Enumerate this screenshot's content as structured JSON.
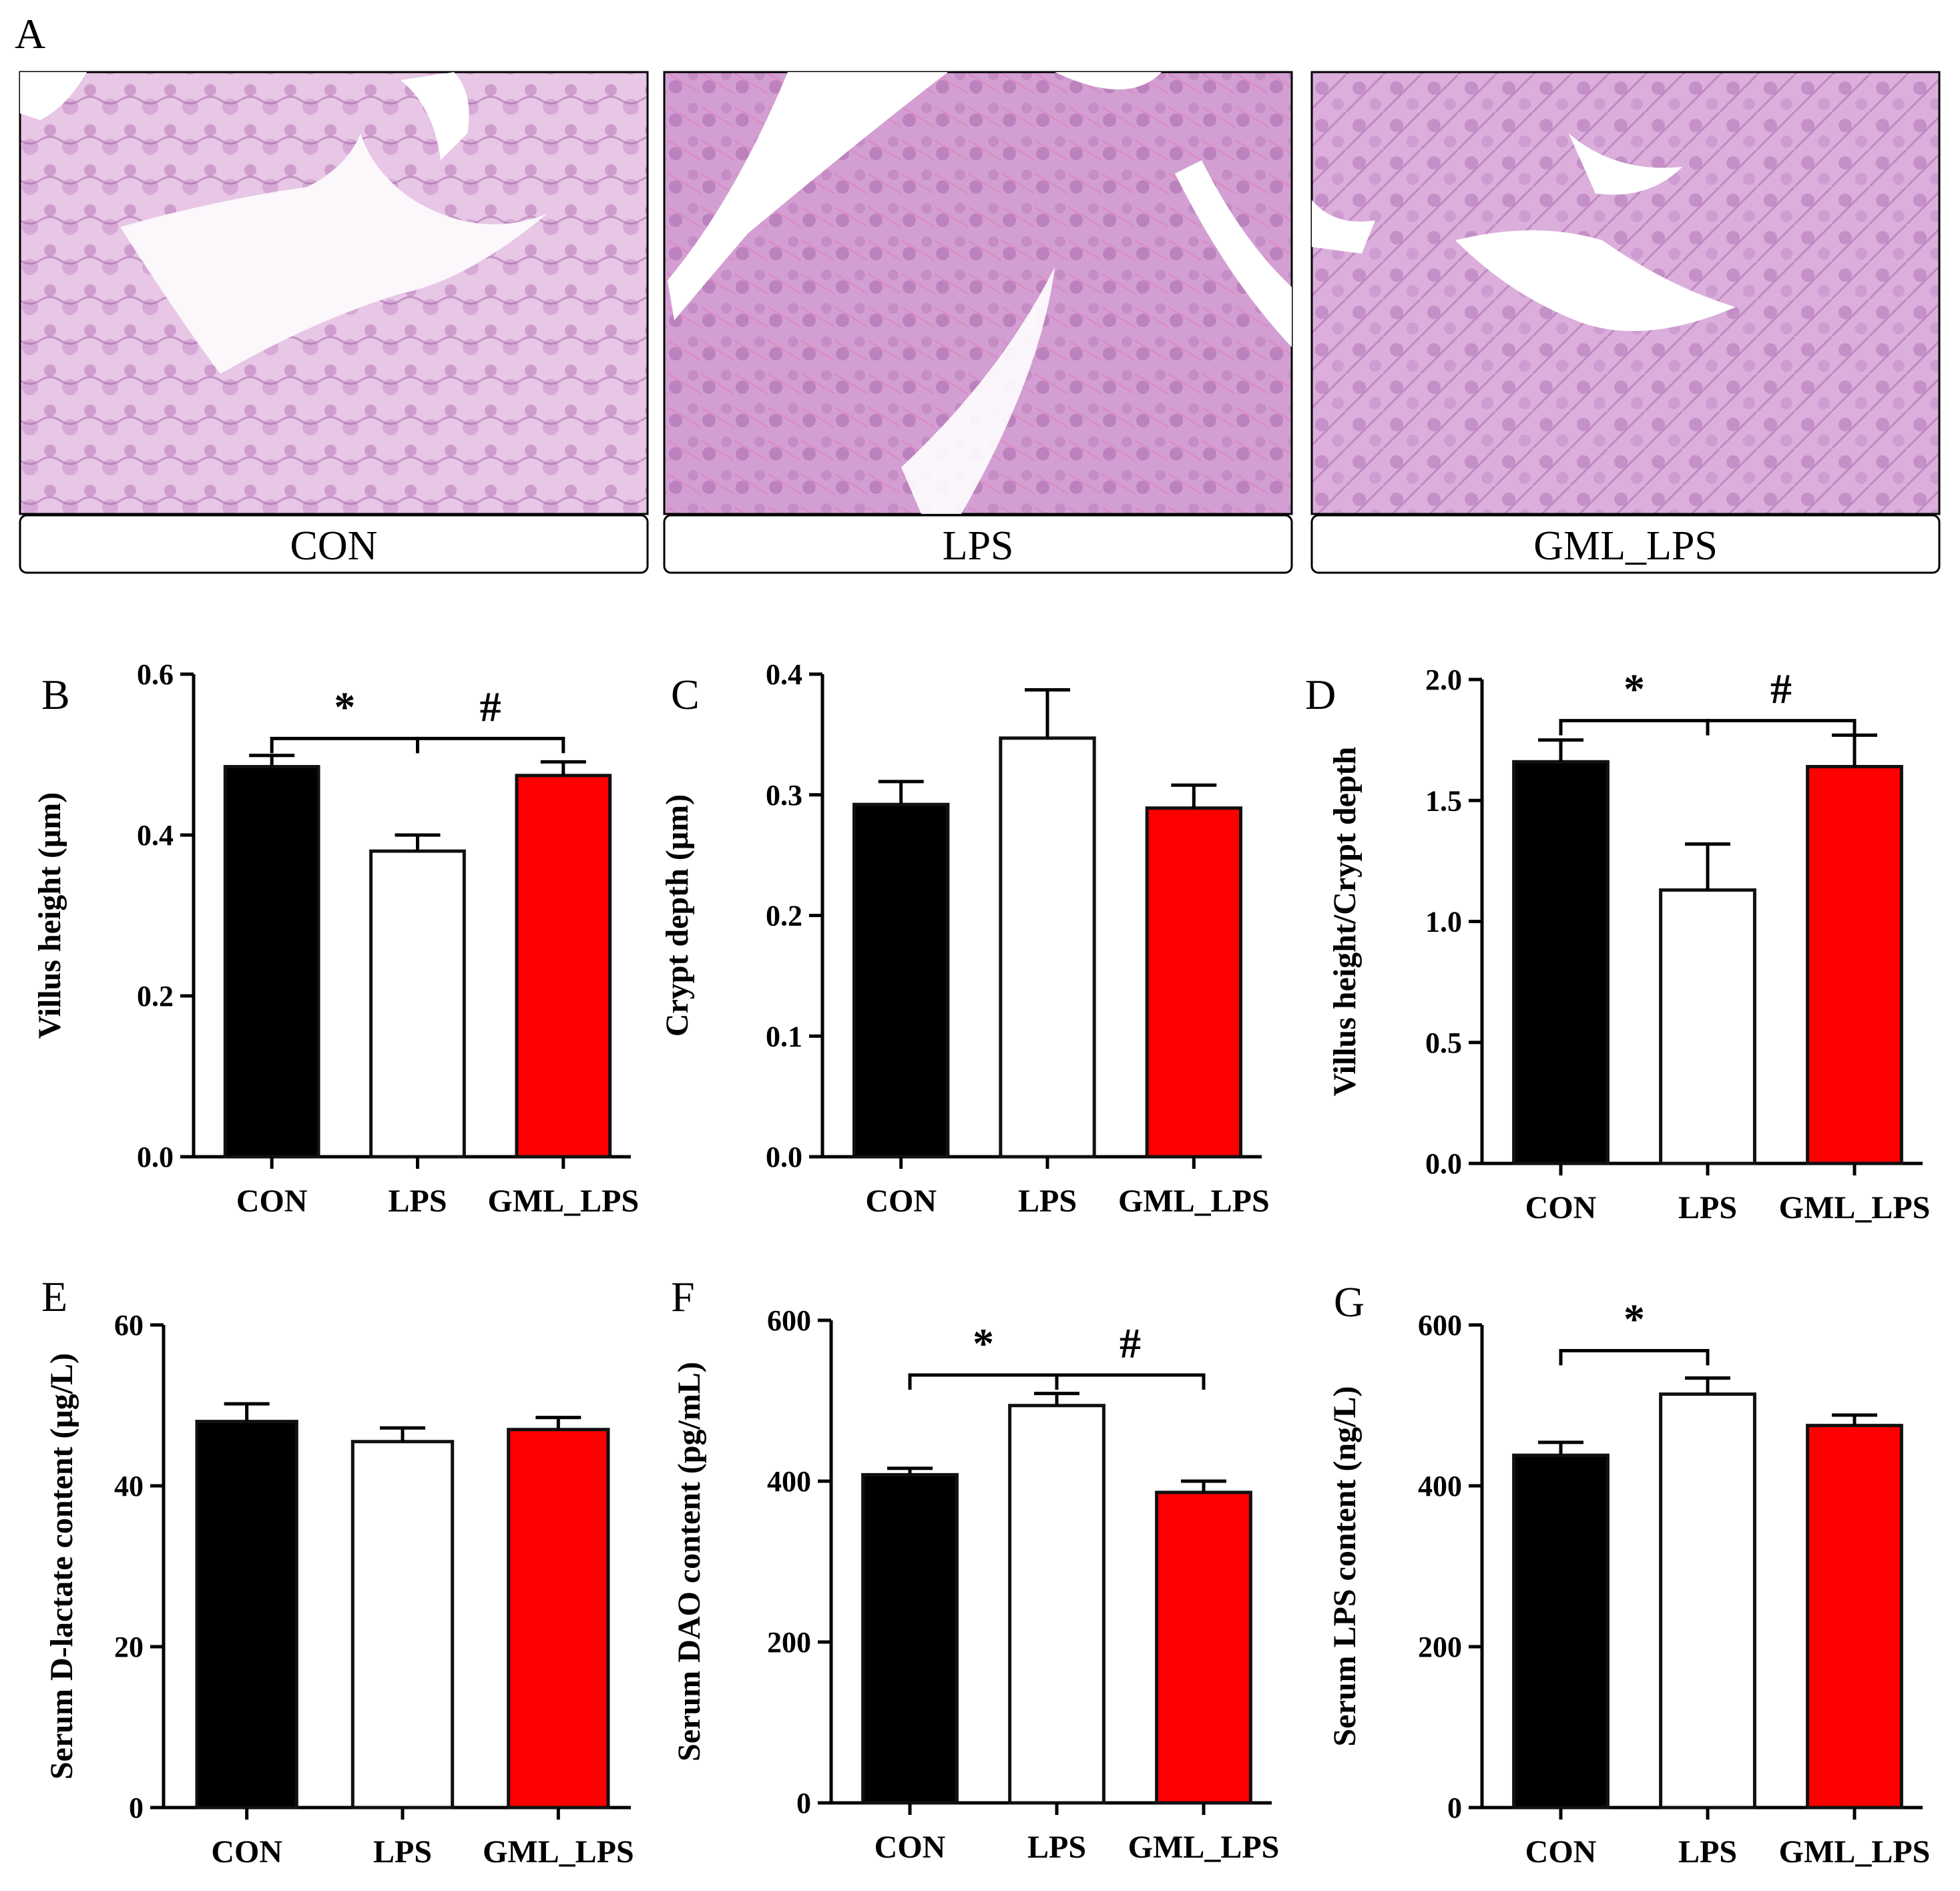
{
  "panel_a": {
    "letter": "A",
    "images": [
      {
        "caption": "CON",
        "tint": "#d9a6d6"
      },
      {
        "caption": "LPS",
        "tint": "#c98cc9"
      },
      {
        "caption": "GML_LPS",
        "tint": "#d49ad3"
      }
    ]
  },
  "colors": {
    "CON": "#000000",
    "LPS": "#ffffff",
    "GML_LPS": "#ff0000"
  },
  "chart_data": [
    {
      "type": "bar",
      "letter": "B",
      "ylabel": "Villus height (μm)",
      "categories": [
        "CON",
        "LPS",
        "GML_LPS"
      ],
      "values": [
        0.485,
        0.38,
        0.474
      ],
      "errors": [
        0.014,
        0.02,
        0.017
      ],
      "ylim": [
        0,
        0.6
      ],
      "ticks": [
        0.0,
        0.2,
        0.4,
        0.6
      ],
      "tick_labels": [
        "0.0",
        "0.2",
        "0.4",
        "0.6"
      ],
      "brackets": [
        {
          "from": 0,
          "to": 1,
          "symbol": "*",
          "y": 0.52
        },
        {
          "from": 1,
          "to": 2,
          "symbol": "#",
          "y": 0.52
        }
      ]
    },
    {
      "type": "bar",
      "letter": "C",
      "ylabel": "Crypt depth (μm)",
      "categories": [
        "CON",
        "LPS",
        "GML_LPS"
      ],
      "values": [
        0.292,
        0.347,
        0.289
      ],
      "errors": [
        0.019,
        0.04,
        0.019
      ],
      "ylim": [
        0,
        0.4
      ],
      "ticks": [
        0.0,
        0.1,
        0.2,
        0.3,
        0.4
      ],
      "tick_labels": [
        "0.0",
        "0.1",
        "0.2",
        "0.3",
        "0.4"
      ],
      "brackets": []
    },
    {
      "type": "bar",
      "letter": "D",
      "ylabel": "Villus height/Crypt depth",
      "categories": [
        "CON",
        "LPS",
        "GML_LPS"
      ],
      "values": [
        1.66,
        1.13,
        1.64
      ],
      "errors": [
        0.09,
        0.19,
        0.13
      ],
      "ylim": [
        0,
        2.0
      ],
      "ticks": [
        0.0,
        0.5,
        1.0,
        1.5,
        2.0
      ],
      "tick_labels": [
        "0.0",
        "0.5",
        "1.0",
        "1.5",
        "2.0"
      ],
      "brackets": [
        {
          "from": 0,
          "to": 1,
          "symbol": "*",
          "y": 1.83
        },
        {
          "from": 1,
          "to": 2,
          "symbol": "#",
          "y": 1.83
        }
      ]
    },
    {
      "type": "bar",
      "letter": "E",
      "ylabel": "Serum D-lactate content (μg/L)",
      "categories": [
        "CON",
        "LPS",
        "GML_LPS"
      ],
      "values": [
        48.0,
        45.5,
        47.0
      ],
      "errors": [
        2.2,
        1.7,
        1.5
      ],
      "ylim": [
        0,
        60
      ],
      "ticks": [
        0,
        20,
        40,
        60
      ],
      "tick_labels": [
        "0",
        "20",
        "40",
        "60"
      ],
      "brackets": []
    },
    {
      "type": "bar",
      "letter": "F",
      "ylabel": "Serum DAO content (pg/mL)",
      "categories": [
        "CON",
        "LPS",
        "GML_LPS"
      ],
      "values": [
        408,
        494,
        386
      ],
      "errors": [
        8,
        15,
        14
      ],
      "ylim": [
        0,
        600
      ],
      "ticks": [
        0,
        200,
        400,
        600
      ],
      "tick_labels": [
        "0",
        "200",
        "400",
        "600"
      ],
      "brackets": [
        {
          "from": 0,
          "to": 1,
          "symbol": "*",
          "y": 532
        },
        {
          "from": 1,
          "to": 2,
          "symbol": "#",
          "y": 532
        }
      ]
    },
    {
      "type": "bar",
      "letter": "G",
      "ylabel": "Serum LPS content (ng/L)",
      "categories": [
        "CON",
        "LPS",
        "GML_LPS"
      ],
      "values": [
        438,
        514,
        475
      ],
      "errors": [
        16,
        20,
        13
      ],
      "ylim": [
        0,
        600
      ],
      "ticks": [
        0,
        200,
        400,
        600
      ],
      "tick_labels": [
        "0",
        "200",
        "400",
        "600"
      ],
      "brackets": [
        {
          "from": 0,
          "to": 1,
          "symbol": "*",
          "y": 568
        }
      ]
    }
  ]
}
